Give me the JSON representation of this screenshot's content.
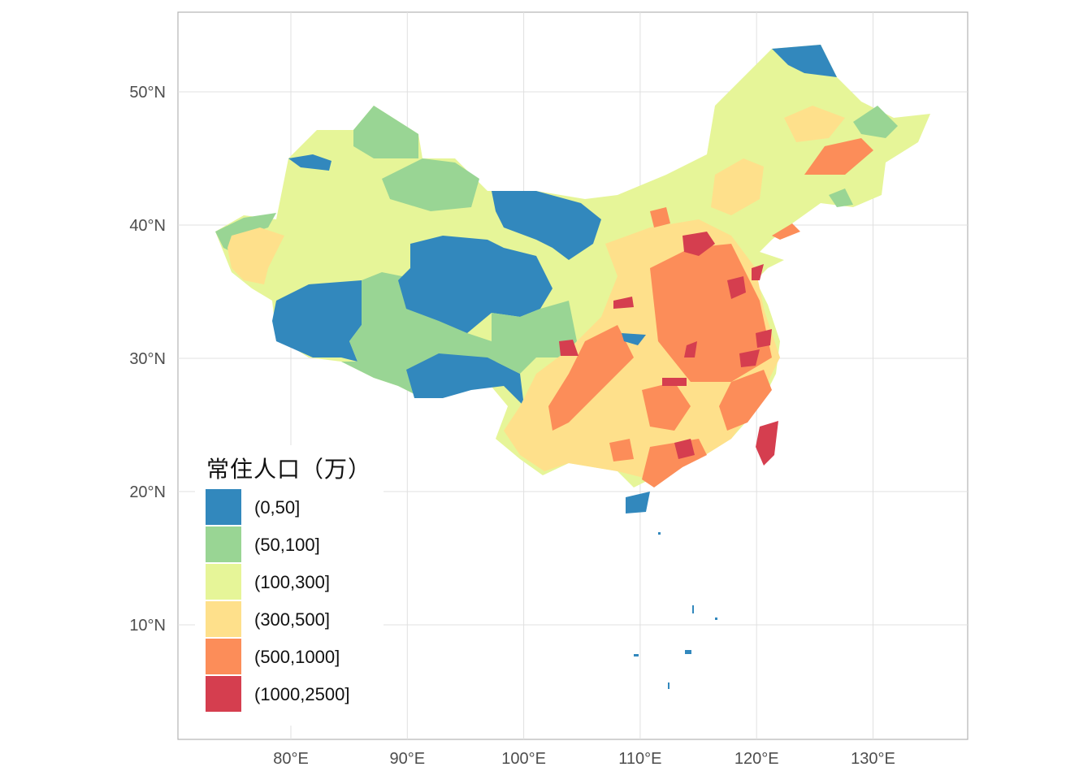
{
  "chart_data": {
    "type": "choropleth",
    "title": "",
    "xlabel": "",
    "ylabel": "",
    "x_ticks": [
      "80°E",
      "90°E",
      "100°E",
      "110°E",
      "120°E",
      "130°E"
    ],
    "y_ticks": [
      "50°N",
      "40°N",
      "30°N",
      "20°N",
      "10°N"
    ],
    "x_tick_values": [
      80,
      90,
      100,
      110,
      120,
      130
    ],
    "y_tick_values": [
      50,
      40,
      30,
      20,
      10
    ],
    "grid": true,
    "legend": {
      "title": "常住人口（万）",
      "placement": "bottom-left",
      "items": [
        {
          "label": "(0,50]",
          "color": "#3288BD"
        },
        {
          "label": "(50,100]",
          "color": "#99D594"
        },
        {
          "label": "(100,300]",
          "color": "#E6F598"
        },
        {
          "label": "(300,500]",
          "color": "#FEE08B"
        },
        {
          "label": "(500,1000]",
          "color": "#FC8D59"
        },
        {
          "label": "(1000,2500]",
          "color": "#D53E4F"
        }
      ]
    }
  }
}
